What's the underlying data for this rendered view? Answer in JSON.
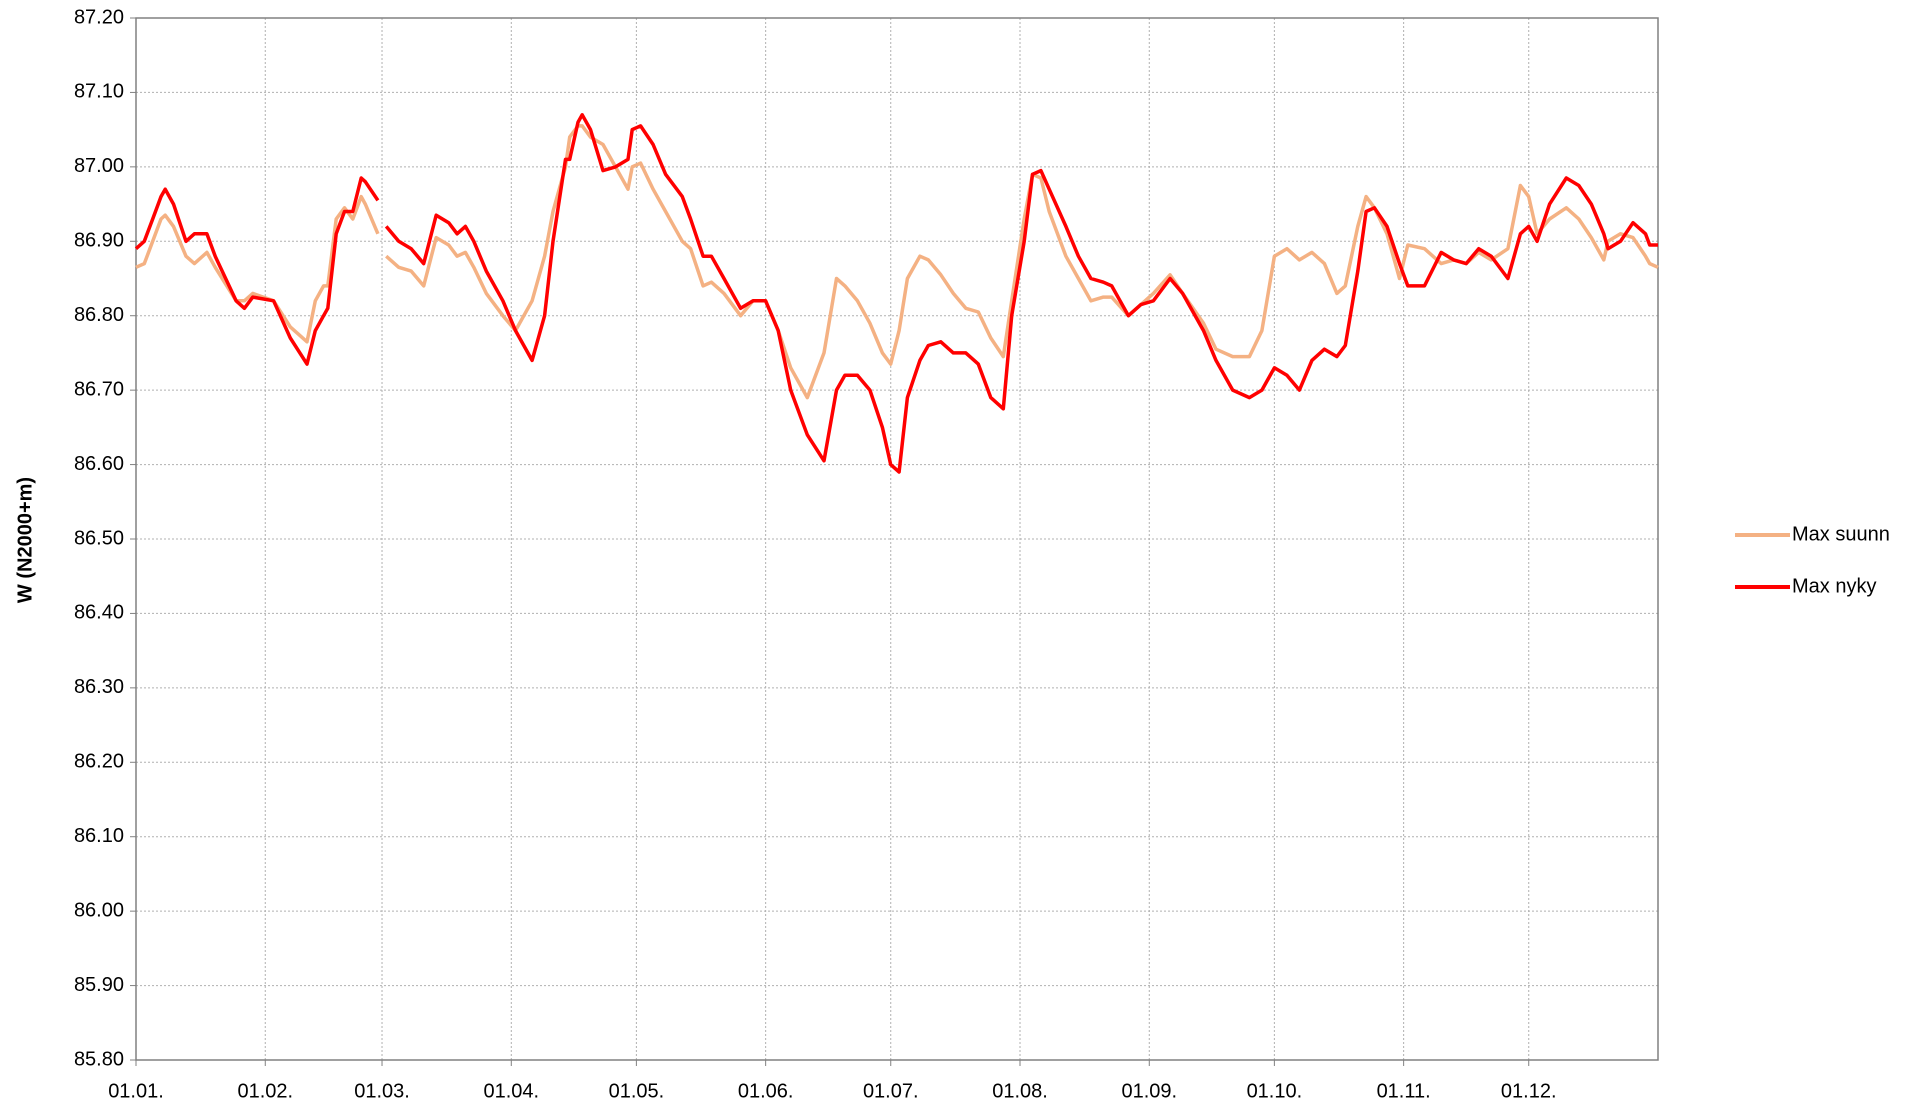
{
  "chart_data": {
    "type": "line",
    "ylabel": "W (N2000+m)",
    "x": [
      0,
      2,
      4,
      6,
      7,
      9,
      12,
      14,
      17,
      19,
      24,
      26,
      28,
      33,
      37,
      41,
      43,
      45,
      46,
      48,
      50,
      52,
      54,
      55,
      58,
      59,
      60,
      63,
      66,
      69,
      72,
      75,
      77,
      79,
      81,
      84,
      88,
      91,
      95,
      98,
      100,
      103,
      104,
      106,
      107,
      109,
      112,
      115,
      118,
      119,
      121,
      124,
      127,
      131,
      133,
      136,
      138,
      141,
      145,
      148,
      151,
      154,
      157,
      161,
      165,
      168,
      170,
      173,
      176,
      179,
      181,
      183,
      185,
      188,
      190,
      193,
      196,
      199,
      202,
      205,
      208,
      210,
      213,
      215,
      217,
      219,
      223,
      226,
      229,
      232,
      234,
      238,
      241,
      244,
      248,
      251,
      256,
      259,
      263,
      267,
      270,
      273,
      276,
      279,
      282,
      285,
      288,
      290,
      293,
      295,
      297,
      300,
      303,
      305,
      309,
      313,
      316,
      319,
      322,
      325,
      329,
      332,
      334,
      336,
      339,
      343,
      346,
      349,
      352,
      353,
      356,
      359,
      362,
      363,
      365
    ],
    "series": [
      {
        "name": "Max suunn",
        "color": "#f4b183",
        "values": [
          86.865,
          86.87,
          86.9,
          86.93,
          86.935,
          86.92,
          86.88,
          86.87,
          86.885,
          86.865,
          86.82,
          86.82,
          86.83,
          86.82,
          86.785,
          86.765,
          86.82,
          86.84,
          86.84,
          86.93,
          86.945,
          86.93,
          86.96,
          86.95,
          86.91,
          null,
          86.88,
          86.865,
          86.86,
          86.84,
          86.905,
          86.895,
          86.88,
          86.885,
          86.865,
          86.83,
          86.8,
          86.78,
          86.82,
          86.88,
          86.94,
          87,
          87.04,
          87.055,
          87.055,
          87.04,
          87.03,
          87,
          86.97,
          87,
          87.005,
          86.97,
          86.94,
          86.9,
          86.89,
          86.84,
          86.845,
          86.83,
          86.8,
          86.82,
          86.82,
          86.78,
          86.73,
          86.69,
          86.75,
          86.85,
          86.84,
          86.82,
          86.79,
          86.75,
          86.735,
          86.78,
          86.85,
          86.88,
          86.875,
          86.855,
          86.83,
          86.81,
          86.805,
          86.77,
          86.745,
          86.82,
          86.93,
          86.99,
          86.985,
          86.94,
          86.88,
          86.85,
          86.82,
          86.825,
          86.825,
          86.8,
          86.815,
          86.83,
          86.855,
          86.83,
          86.79,
          86.755,
          86.745,
          86.745,
          86.78,
          86.88,
          86.89,
          86.875,
          86.885,
          86.87,
          86.83,
          86.84,
          86.92,
          86.96,
          86.945,
          86.91,
          86.85,
          86.895,
          86.89,
          86.87,
          86.875,
          86.87,
          86.885,
          86.875,
          86.89,
          86.975,
          86.96,
          86.91,
          86.93,
          86.945,
          86.93,
          86.905,
          86.875,
          86.9,
          86.91,
          86.905,
          86.88,
          86.87,
          86.865
        ]
      },
      {
        "name": "Max nyky",
        "color": "#ff0000",
        "values": [
          86.89,
          86.9,
          86.93,
          86.96,
          86.97,
          86.95,
          86.9,
          86.91,
          86.91,
          86.88,
          86.82,
          86.81,
          86.825,
          86.82,
          86.77,
          86.735,
          86.78,
          86.8,
          86.81,
          86.91,
          86.94,
          86.94,
          86.985,
          86.98,
          86.955,
          null,
          86.92,
          86.9,
          86.89,
          86.87,
          86.935,
          86.925,
          86.91,
          86.92,
          86.9,
          86.86,
          86.82,
          86.78,
          86.74,
          86.8,
          86.9,
          87.01,
          87.01,
          87.06,
          87.07,
          87.05,
          86.995,
          87,
          87.01,
          87.05,
          87.055,
          87.03,
          86.99,
          86.96,
          86.93,
          86.88,
          86.88,
          86.85,
          86.81,
          86.82,
          86.82,
          86.78,
          86.7,
          86.64,
          86.605,
          86.7,
          86.72,
          86.72,
          86.7,
          86.65,
          86.6,
          86.59,
          86.69,
          86.74,
          86.76,
          86.765,
          86.75,
          86.75,
          86.735,
          86.69,
          86.675,
          86.8,
          86.9,
          86.99,
          86.995,
          86.97,
          86.92,
          86.88,
          86.85,
          86.845,
          86.84,
          86.8,
          86.815,
          86.82,
          86.85,
          86.83,
          86.78,
          86.74,
          86.7,
          86.69,
          86.7,
          86.73,
          86.72,
          86.7,
          86.74,
          86.755,
          86.745,
          86.76,
          86.86,
          86.94,
          86.945,
          86.92,
          86.87,
          86.84,
          86.84,
          86.885,
          86.875,
          86.87,
          86.89,
          86.88,
          86.85,
          86.91,
          86.92,
          86.9,
          86.95,
          86.985,
          86.975,
          86.95,
          86.91,
          86.89,
          86.9,
          86.925,
          86.91,
          86.895,
          86.895
        ]
      }
    ],
    "xlim": [
      0,
      365
    ],
    "xticks": [
      {
        "value": 0,
        "label": "01.01."
      },
      {
        "value": 31,
        "label": "01.02."
      },
      {
        "value": 59,
        "label": "01.03."
      },
      {
        "value": 90,
        "label": "01.04."
      },
      {
        "value": 120,
        "label": "01.05."
      },
      {
        "value": 151,
        "label": "01.06."
      },
      {
        "value": 181,
        "label": "01.07."
      },
      {
        "value": 212,
        "label": "01.08."
      },
      {
        "value": 243,
        "label": "01.09."
      },
      {
        "value": 273,
        "label": "01.10."
      },
      {
        "value": 304,
        "label": "01.11."
      },
      {
        "value": 334,
        "label": "01.12."
      }
    ],
    "ylim": [
      85.8,
      87.2
    ],
    "yticks": [
      {
        "value": 85.8,
        "label": "85.80"
      },
      {
        "value": 85.9,
        "label": "85.90"
      },
      {
        "value": 86.0,
        "label": "86.00"
      },
      {
        "value": 86.1,
        "label": "86.10"
      },
      {
        "value": 86.2,
        "label": "86.20"
      },
      {
        "value": 86.3,
        "label": "86.30"
      },
      {
        "value": 86.4,
        "label": "86.40"
      },
      {
        "value": 86.5,
        "label": "86.50"
      },
      {
        "value": 86.6,
        "label": "86.60"
      },
      {
        "value": 86.7,
        "label": "86.70"
      },
      {
        "value": 86.8,
        "label": "86.80"
      },
      {
        "value": 86.9,
        "label": "86.90"
      },
      {
        "value": 87.0,
        "label": "87.00"
      },
      {
        "value": 87.1,
        "label": "87.10"
      },
      {
        "value": 87.2,
        "label": "87.20"
      }
    ],
    "grid": true,
    "legend": "right"
  }
}
